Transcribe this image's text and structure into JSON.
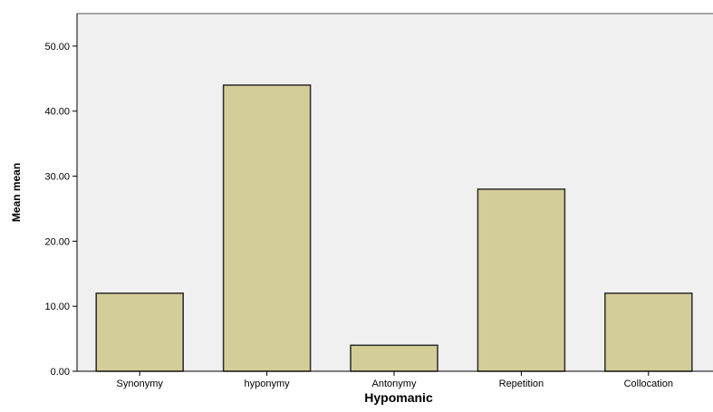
{
  "chart_data": {
    "type": "bar",
    "title": "",
    "xlabel": "Hypomanic",
    "ylabel": "Mean mean",
    "categories": [
      "Synonymy",
      "hyponymy",
      "Antonymy",
      "Repetition",
      "Collocation"
    ],
    "values": [
      12,
      44,
      4,
      28,
      12
    ],
    "ylim": [
      0,
      55
    ],
    "yticks": [
      0,
      10,
      20,
      30,
      40,
      50
    ],
    "ytick_labels": [
      "0.00",
      "10.00",
      "20.00",
      "30.00",
      "40.00",
      "50.00"
    ],
    "grid": false,
    "legend": "none",
    "colors": {
      "plot_background": "#f0f0f0",
      "bar_fill": "#d3ce97",
      "bar_stroke": "#2b2b2b",
      "axis": "#000000"
    }
  }
}
